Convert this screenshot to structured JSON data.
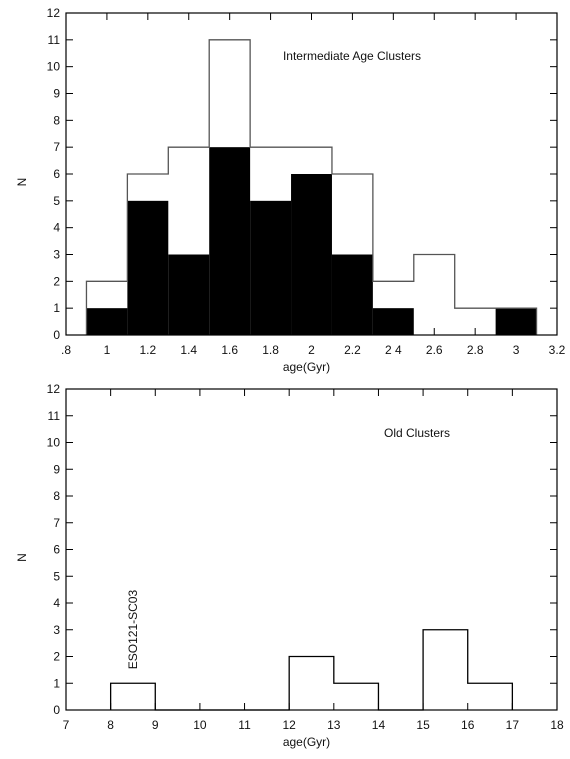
{
  "chart_data": [
    {
      "type": "bar",
      "annotation": "Intermediate Age Clusters",
      "xlabel": "age(Gyr)",
      "ylabel": "N",
      "xlim": [
        0.8,
        3.2
      ],
      "ylim": [
        0,
        12
      ],
      "x_ticks": [
        ".8",
        "1",
        "1.2",
        "1.4",
        "1.6",
        "1.8",
        "2",
        "2.2",
        "2 4",
        "2.6",
        "2.8",
        "3",
        "3.2"
      ],
      "y_ticks": [
        "0",
        "1",
        "2",
        "3",
        "4",
        "5",
        "6",
        "7",
        "8",
        "9",
        "10",
        "11",
        "12"
      ],
      "bin_edges": [
        0.9,
        1.1,
        1.3,
        1.5,
        1.7,
        1.9,
        2.1,
        2.3,
        2.5,
        2.7,
        2.9,
        3.1
      ],
      "series": [
        {
          "style": "outline",
          "values": [
            2,
            6,
            7,
            11,
            7,
            7,
            6,
            2,
            3,
            1,
            1
          ]
        },
        {
          "style": "filled",
          "values": [
            1,
            5,
            3,
            7,
            5,
            6,
            3,
            1,
            0,
            0,
            1
          ]
        }
      ]
    },
    {
      "type": "bar",
      "annotation": "Old Clusters",
      "xlabel": "age(Gyr)",
      "ylabel": "N",
      "xlim": [
        7,
        18
      ],
      "ylim": [
        0,
        12
      ],
      "x_ticks": [
        "7",
        "8",
        "9",
        "10",
        "11",
        "12",
        "13",
        "14",
        "15",
        "16",
        "17",
        "18"
      ],
      "y_ticks": [
        "0",
        "1",
        "2",
        "3",
        "4",
        "5",
        "6",
        "7",
        "8",
        "9",
        "10",
        "11",
        "12"
      ],
      "bin_edges": [
        8,
        9,
        10,
        11,
        12,
        13,
        14,
        15,
        16,
        17
      ],
      "series": [
        {
          "style": "outline",
          "values": [
            1,
            0,
            0,
            0,
            2,
            1,
            0,
            3,
            1
          ]
        }
      ],
      "point_label": {
        "text": "ESO121-SC03",
        "x": 8.5
      }
    }
  ]
}
